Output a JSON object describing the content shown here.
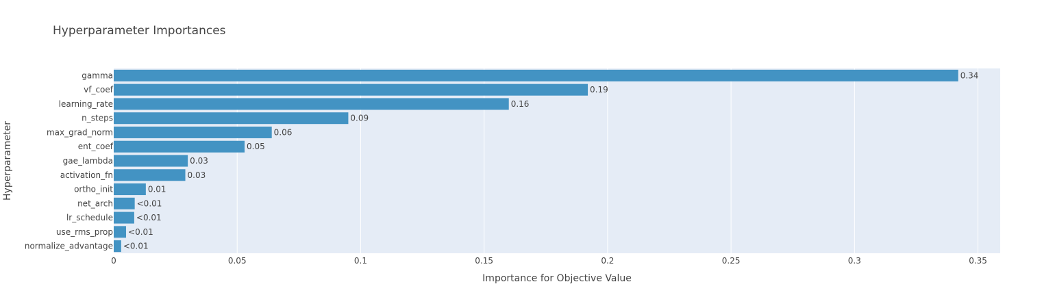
{
  "chart_data": {
    "type": "bar",
    "orientation": "horizontal",
    "title": "Hyperparameter Importances",
    "xlabel": "Importance for Objective Value",
    "ylabel": "Hyperparameter",
    "xlim": [
      0,
      0.359
    ],
    "xticks": [
      0,
      0.05,
      0.1,
      0.15,
      0.2,
      0.25,
      0.3,
      0.35
    ],
    "xtick_labels": [
      "0",
      "0.05",
      "0.1",
      "0.15",
      "0.2",
      "0.25",
      "0.3",
      "0.35"
    ],
    "grid": true,
    "bar_color": "#4393c3",
    "plot_bg": "#e5ecf6",
    "categories": [
      "gamma",
      "vf_coef",
      "learning_rate",
      "n_steps",
      "max_grad_norm",
      "ent_coef",
      "gae_lambda",
      "activation_fn",
      "ortho_init",
      "net_arch",
      "lr_schedule",
      "use_rms_prop",
      "normalize_advantage"
    ],
    "values": [
      0.342,
      0.192,
      0.16,
      0.095,
      0.064,
      0.053,
      0.03,
      0.029,
      0.013,
      0.0085,
      0.0083,
      0.005,
      0.003
    ],
    "data_labels": [
      "0.34",
      "0.19",
      "0.16",
      "0.09",
      "0.06",
      "0.05",
      "0.03",
      "0.03",
      "0.01",
      "<0.01",
      "<0.01",
      "<0.01",
      "<0.01"
    ]
  }
}
